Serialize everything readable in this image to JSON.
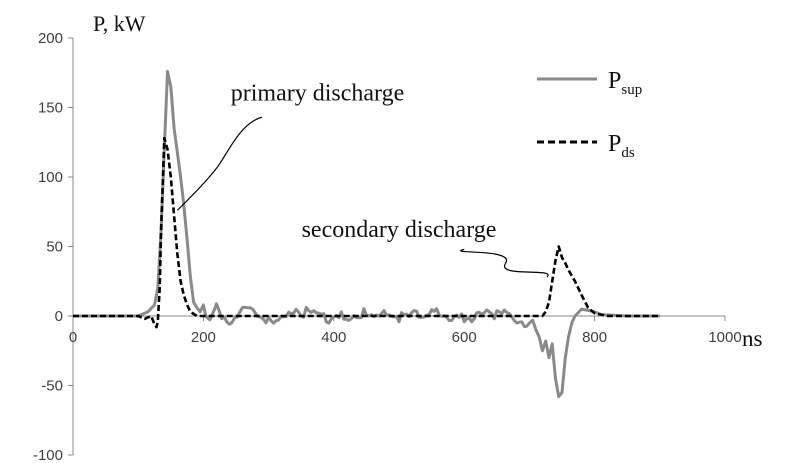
{
  "chart_data": {
    "type": "line",
    "xlabel": "ns",
    "ylabel": "P, kW",
    "xlim": [
      0,
      1000
    ],
    "ylim": [
      -100,
      200
    ],
    "xticks": [
      0,
      200,
      400,
      600,
      800,
      1000
    ],
    "yticks": [
      -100,
      -50,
      0,
      50,
      100,
      150,
      200
    ],
    "grid": false,
    "legend_position": "top-right",
    "series": [
      {
        "name": "P_sup",
        "legend_main": "P",
        "legend_sub": "sup",
        "style": "solid",
        "color": "#8a8a8a",
        "noise": "small ripple around 0 between 200 and 700 ns",
        "x": [
          0,
          100,
          115,
          125,
          130,
          135,
          140,
          145,
          150,
          155,
          160,
          165,
          170,
          175,
          180,
          185,
          190,
          195,
          200,
          210,
          220,
          240,
          260,
          300,
          350,
          400,
          450,
          500,
          550,
          600,
          650,
          700,
          705,
          710,
          715,
          720,
          725,
          730,
          735,
          740,
          745,
          750,
          755,
          760,
          765,
          770,
          780,
          790,
          800,
          810,
          850,
          900
        ],
        "y": [
          0,
          0,
          3,
          8,
          20,
          60,
          120,
          176,
          165,
          135,
          118,
          100,
          80,
          55,
          28,
          10,
          6,
          3,
          8,
          -5,
          5,
          -3,
          4,
          -2,
          3,
          -2,
          3,
          -2,
          3,
          -2,
          2,
          -5,
          -3,
          -10,
          -15,
          -25,
          -18,
          -30,
          -20,
          -45,
          -58,
          -55,
          -30,
          -15,
          -5,
          0,
          5,
          4,
          3,
          1,
          0,
          0
        ]
      },
      {
        "name": "P_ds",
        "legend_main": "P",
        "legend_sub": "ds",
        "style": "dashed",
        "color": "#000000",
        "x": [
          0,
          100,
          110,
          120,
          125,
          128,
          130,
          133,
          135,
          138,
          140,
          145,
          150,
          155,
          160,
          165,
          170,
          175,
          180,
          190,
          200,
          300,
          400,
          500,
          600,
          700,
          720,
          725,
          730,
          735,
          740,
          745,
          750,
          755,
          760,
          770,
          780,
          790,
          800,
          810,
          820,
          830,
          850,
          900
        ],
        "y": [
          0,
          0,
          -2,
          0,
          -6,
          -8,
          -4,
          20,
          60,
          100,
          128,
          120,
          100,
          72,
          45,
          25,
          15,
          8,
          3,
          0,
          0,
          0,
          0,
          0,
          0,
          0,
          0,
          3,
          10,
          25,
          40,
          50,
          42,
          38,
          33,
          25,
          15,
          6,
          2,
          1,
          0,
          0,
          0,
          0
        ]
      }
    ],
    "annotations": [
      {
        "text": "primary discharge",
        "x": 375,
        "y": 155,
        "arrow_from": [
          290,
          143
        ],
        "arrow_to": [
          160,
          76
        ]
      },
      {
        "text": "secondary discharge",
        "x": 500,
        "y": 57,
        "arrow_from": [
          600,
          48
        ],
        "arrow_to": [
          727,
          28
        ]
      }
    ]
  }
}
